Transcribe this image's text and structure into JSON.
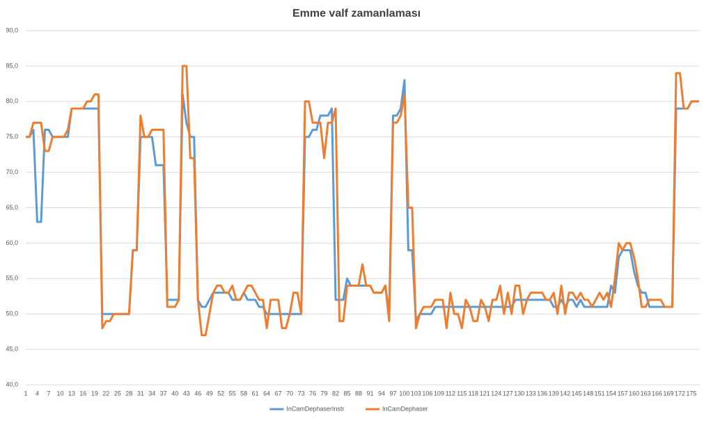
{
  "chart_data": {
    "type": "line",
    "title": "Emme valf zamanlaması",
    "categories": [
      "1",
      null,
      null,
      "4",
      null,
      null,
      "7",
      null,
      null,
      "10",
      null,
      null,
      "13",
      null,
      null,
      "16",
      null,
      null,
      "19",
      null,
      null,
      "22",
      null,
      null,
      "25",
      null,
      null,
      "28",
      null,
      null,
      "31",
      null,
      null,
      "34",
      null,
      null,
      "37",
      null,
      null,
      "40",
      null,
      null,
      "43",
      null,
      null,
      "46",
      null,
      null,
      "49",
      null,
      null,
      "52",
      null,
      null,
      "55",
      null,
      null,
      "58",
      null,
      null,
      "61",
      null,
      null,
      "64",
      null,
      null,
      "67",
      null,
      null,
      "70",
      null,
      null,
      "73",
      null,
      null,
      "76",
      null,
      null,
      "79",
      null,
      null,
      "82",
      null,
      null,
      "85",
      null,
      null,
      "88",
      null,
      null,
      "91",
      null,
      null,
      "94",
      null,
      null,
      "97",
      null,
      null,
      "100",
      null,
      null,
      "103",
      null,
      null,
      "106",
      null,
      null,
      "109",
      null,
      null,
      "112",
      null,
      null,
      "115",
      null,
      null,
      "118",
      null,
      null,
      "121",
      null,
      null,
      "124",
      null,
      null,
      "127",
      null,
      null,
      "130",
      null,
      null,
      "133",
      null,
      null,
      "136",
      null,
      null,
      "139",
      null,
      null,
      "142",
      null,
      null,
      "145",
      null,
      null,
      "148",
      null,
      null,
      "151",
      null,
      null,
      "154",
      null,
      null,
      "157",
      null,
      null,
      "160",
      null,
      null,
      "163",
      null,
      null,
      "166",
      null,
      null,
      "169",
      null,
      null,
      "172",
      null,
      null,
      "175",
      null,
      null
    ],
    "series": [
      {
        "name": "InCamDephaserInstr",
        "color": "#5b9bd5",
        "values": [
          75,
          75,
          76,
          63,
          63,
          76,
          76,
          75,
          75,
          75,
          75,
          75,
          79,
          79,
          79,
          79,
          79,
          79,
          79,
          79,
          50,
          50,
          50,
          50,
          50,
          50,
          50,
          50,
          59,
          59,
          75,
          75,
          75,
          75,
          71,
          71,
          71,
          52,
          52,
          52,
          52,
          81,
          77,
          75,
          75,
          52,
          51,
          51,
          52,
          53,
          53,
          53,
          53,
          53,
          52,
          52,
          52,
          53,
          52,
          52,
          52,
          51,
          51,
          50,
          50,
          50,
          50,
          50,
          50,
          50,
          50,
          50,
          50,
          75,
          75,
          76,
          76,
          78,
          78,
          78,
          79,
          52,
          52,
          52,
          55,
          54,
          54,
          54,
          54,
          54,
          54,
          53,
          53,
          53,
          54,
          50,
          78,
          78,
          79,
          83,
          59,
          59,
          49,
          50,
          50,
          50,
          50,
          51,
          51,
          51,
          51,
          51,
          51,
          51,
          51,
          51,
          51,
          51,
          51,
          51,
          51,
          51,
          51,
          51,
          51,
          51,
          51,
          51,
          52,
          52,
          52,
          52,
          52,
          52,
          52,
          52,
          52,
          52,
          51,
          51,
          52,
          51,
          52,
          52,
          51,
          52,
          51,
          51,
          51,
          51,
          51,
          51,
          51,
          54,
          53,
          58,
          59,
          59,
          59,
          56,
          54,
          53,
          53,
          51,
          51,
          51,
          51,
          51,
          51,
          51,
          79,
          79,
          79,
          79,
          80,
          80,
          80
        ]
      },
      {
        "name": "InCamDephaser",
        "color": "#ed7d31",
        "values": [
          75,
          75,
          77,
          77,
          77,
          73,
          73,
          75,
          75,
          75,
          75,
          76,
          79,
          79,
          79,
          79,
          80,
          80,
          81,
          81,
          48,
          49,
          49,
          50,
          50,
          50,
          50,
          50,
          59,
          59,
          78,
          75,
          75,
          76,
          76,
          76,
          76,
          51,
          51,
          51,
          52,
          85,
          85,
          72,
          72,
          52,
          47,
          47,
          50,
          53,
          54,
          54,
          53,
          53,
          54,
          52,
          52,
          53,
          54,
          54,
          53,
          52,
          52,
          48,
          52,
          52,
          52,
          48,
          48,
          50,
          53,
          53,
          50,
          80,
          80,
          77,
          77,
          77,
          72,
          77,
          77,
          79,
          49,
          49,
          54,
          54,
          54,
          54,
          57,
          54,
          54,
          53,
          53,
          53,
          54,
          49,
          77,
          77,
          78,
          81,
          65,
          65,
          48,
          50,
          51,
          51,
          51,
          52,
          52,
          52,
          48,
          53,
          50,
          50,
          48,
          52,
          51,
          49,
          49,
          52,
          51,
          49,
          52,
          52,
          54,
          50,
          53,
          50,
          54,
          54,
          50,
          52,
          53,
          53,
          53,
          53,
          52,
          52,
          53,
          50,
          54,
          50,
          53,
          53,
          52,
          53,
          52,
          52,
          51,
          52,
          53,
          52,
          53,
          51,
          55,
          60,
          59,
          60,
          60,
          58,
          55,
          51,
          51,
          52,
          52,
          52,
          52,
          51,
          51,
          51,
          84,
          84,
          79,
          79,
          80,
          80,
          80
        ]
      }
    ],
    "ylim": [
      40,
      90
    ],
    "yticks": [
      {
        "value": 40,
        "label": "40,0"
      },
      {
        "value": 45,
        "label": "45,0"
      },
      {
        "value": 50,
        "label": "50,0"
      },
      {
        "value": 55,
        "label": "55,0"
      },
      {
        "value": 60,
        "label": "60,0"
      },
      {
        "value": 65,
        "label": "65,0"
      },
      {
        "value": 70,
        "label": "70,0"
      },
      {
        "value": 75,
        "label": "75,0"
      },
      {
        "value": 80,
        "label": "80,0"
      },
      {
        "value": 85,
        "label": "85,0"
      },
      {
        "value": 90,
        "label": "90,0"
      }
    ],
    "grid": true,
    "legend": "bottom"
  }
}
